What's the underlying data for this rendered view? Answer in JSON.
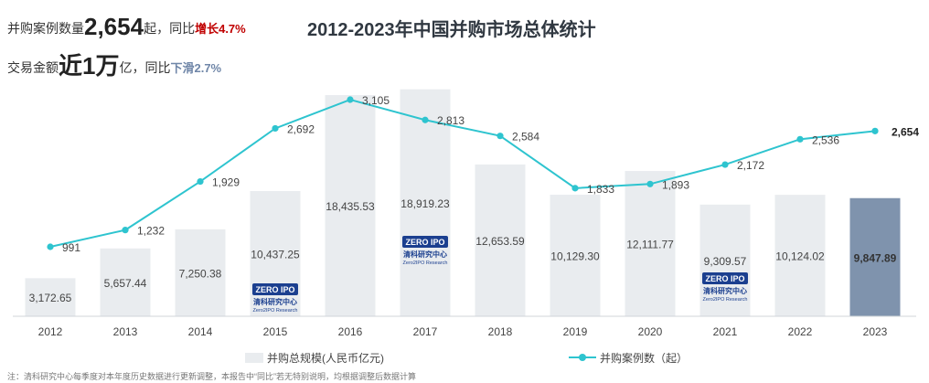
{
  "kpis": {
    "deals": {
      "label": "并购案例数量",
      "value": "2,654",
      "unit": "起，同比",
      "change_word": "增长",
      "change": "4.7%"
    },
    "amount": {
      "label": "交易金额",
      "value": "近1万",
      "unit": "亿，同比",
      "change_word": "下滑",
      "change": "2.7%"
    }
  },
  "watermark": {
    "logo_text": "ZERO IPO",
    "name": "清科研究中心",
    "sub": "Zero2IPO Research"
  },
  "note": "注：清科研究中心每季度对本年度历史数据进行更新调整，本报告中“同比”若无特别说明，均根据调整后数据计算",
  "chart_data": {
    "type": "bar",
    "title": "2012-2023年中国并购市场总体统计",
    "categories": [
      "2012",
      "2013",
      "2014",
      "2015",
      "2016",
      "2017",
      "2018",
      "2019",
      "2020",
      "2021",
      "2022",
      "2023"
    ],
    "series": [
      {
        "name": "并购总规模(人民币亿元)",
        "type": "bar",
        "values": [
          3172.65,
          5657.44,
          7250.38,
          10437.25,
          18435.53,
          18919.23,
          12653.59,
          10129.3,
          12111.77,
          9309.57,
          10124.02,
          9847.89
        ],
        "labels": [
          "3,172.65",
          "5,657.44",
          "7,250.38",
          "10,437.25",
          "18,435.53",
          "18,919.23",
          "12,653.59",
          "10,129.30",
          "12,111.77",
          "9,309.57",
          "10,124.02",
          "9,847.89"
        ]
      },
      {
        "name": "并购案例数（起）",
        "type": "line",
        "values": [
          991,
          1232,
          1929,
          2692,
          3105,
          2813,
          2584,
          1833,
          1893,
          2172,
          2536,
          2654
        ],
        "labels": [
          "991",
          "1,232",
          "1,929",
          "2,692",
          "3,105",
          "2,813",
          "2,584",
          "1,833",
          "1,893",
          "2,172",
          "2,536",
          "2,654"
        ]
      }
    ],
    "highlight_index": 11,
    "colors": {
      "bar": "#e9ecef",
      "bar_highlight": "#7f93ad",
      "line": "#2ec4cf"
    },
    "legend_position": "bottom"
  }
}
